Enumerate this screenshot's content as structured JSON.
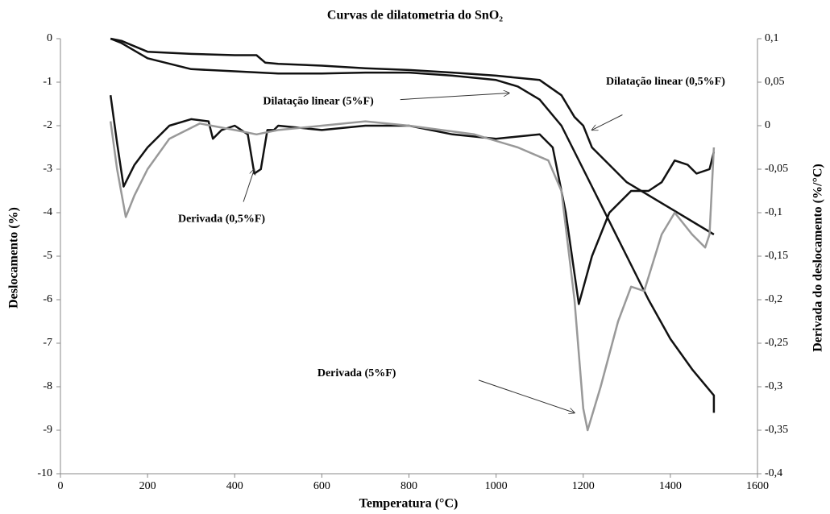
{
  "chart_data": {
    "type": "line",
    "title": "Curvas de dilatometria do SnO₂",
    "xlabel": "Temperatura (°C)",
    "ylabel": "Deslocamento (%)",
    "y2label": "Derivada do deslocamento (%/°C)",
    "xlim": [
      0,
      1600
    ],
    "xticks": [
      0,
      200,
      400,
      600,
      800,
      1000,
      1200,
      1400,
      1600
    ],
    "ylim": [
      -10,
      0
    ],
    "yticks": [
      -10,
      -9,
      -8,
      -7,
      -6,
      -5,
      -4,
      -3,
      -2,
      -1,
      0
    ],
    "y2lim": [
      -0.4,
      0.1
    ],
    "y2ticks": [
      {
        "value": -0.4,
        "label": "-0,4"
      },
      {
        "value": -0.35,
        "label": "-0,35"
      },
      {
        "value": -0.3,
        "label": "-0,3"
      },
      {
        "value": -0.25,
        "label": "-0,25"
      },
      {
        "value": -0.2,
        "label": "-0,2"
      },
      {
        "value": -0.15,
        "label": "-0,15"
      },
      {
        "value": -0.1,
        "label": "-0,1"
      },
      {
        "value": -0.05,
        "label": "-0,05"
      },
      0,
      {
        "value": 0.05,
        "label": "0,05"
      },
      {
        "value": 0.1,
        "label": "0,1"
      }
    ],
    "series": [
      {
        "name": "Dilatação linear (5%F)",
        "color": "#111111",
        "x": [
          115,
          140,
          200,
          300,
          400,
          500,
          600,
          700,
          800,
          900,
          1000,
          1050,
          1100,
          1150,
          1200,
          1250,
          1300,
          1350,
          1400,
          1450,
          1500,
          1500
        ],
        "values": [
          0,
          -0.1,
          -0.45,
          -0.7,
          -0.75,
          -0.8,
          -0.8,
          -0.78,
          -0.78,
          -0.85,
          -0.95,
          -1.1,
          -1.4,
          -2.0,
          -3.0,
          -4.0,
          -5.0,
          -6.0,
          -6.9,
          -7.6,
          -8.2,
          -8.6
        ]
      },
      {
        "name": "Dilatação linear (0,5%F)",
        "color": "#111111",
        "x": [
          115,
          140,
          200,
          300,
          400,
          450,
          470,
          500,
          600,
          700,
          800,
          900,
          1000,
          1100,
          1150,
          1180,
          1200,
          1220,
          1300,
          1400,
          1500
        ],
        "values": [
          0,
          -0.05,
          -0.3,
          -0.35,
          -0.38,
          -0.38,
          -0.55,
          -0.58,
          -0.62,
          -0.68,
          -0.72,
          -0.78,
          -0.85,
          -0.95,
          -1.3,
          -1.8,
          -2.0,
          -2.5,
          -3.3,
          -3.9,
          -4.5
        ]
      },
      {
        "name": "Derivada (0,5%F)",
        "color": "#111111",
        "axis": "y2",
        "x": [
          115,
          130,
          145,
          170,
          200,
          250,
          300,
          340,
          350,
          370,
          400,
          430,
          445,
          460,
          475,
          490,
          500,
          600,
          700,
          800,
          900,
          1000,
          1100,
          1130,
          1160,
          1190,
          1220,
          1260,
          1310,
          1350,
          1380,
          1410,
          1440,
          1460,
          1490,
          1500
        ],
        "values": [
          0.035,
          -0.02,
          -0.07,
          -0.045,
          -0.025,
          0,
          0.0075,
          0.005,
          -0.015,
          -0.005,
          0,
          -0.01,
          -0.055,
          -0.05,
          -0.005,
          -0.005,
          0,
          -0.005,
          0,
          0,
          -0.01,
          -0.015,
          -0.01,
          -0.025,
          -0.1,
          -0.205,
          -0.15,
          -0.1,
          -0.075,
          -0.075,
          -0.065,
          -0.04,
          -0.045,
          -0.055,
          -0.05,
          -0.03
        ]
      },
      {
        "name": "Derivada (5%F)",
        "color": "#999999",
        "axis": "y2",
        "x": [
          115,
          130,
          150,
          170,
          200,
          250,
          320,
          400,
          450,
          500,
          600,
          700,
          800,
          950,
          1050,
          1120,
          1150,
          1180,
          1200,
          1210,
          1240,
          1280,
          1310,
          1340,
          1380,
          1410,
          1450,
          1480,
          1490,
          1500
        ],
        "values": [
          0.005,
          -0.05,
          -0.105,
          -0.08,
          -0.05,
          -0.015,
          0.0025,
          -0.005,
          -0.01,
          -0.005,
          0,
          0.005,
          0,
          -0.01,
          -0.025,
          -0.04,
          -0.075,
          -0.2,
          -0.325,
          -0.35,
          -0.3,
          -0.225,
          -0.185,
          -0.19,
          -0.125,
          -0.1,
          -0.125,
          -0.14,
          -0.125,
          -0.025
        ]
      }
    ]
  }
}
